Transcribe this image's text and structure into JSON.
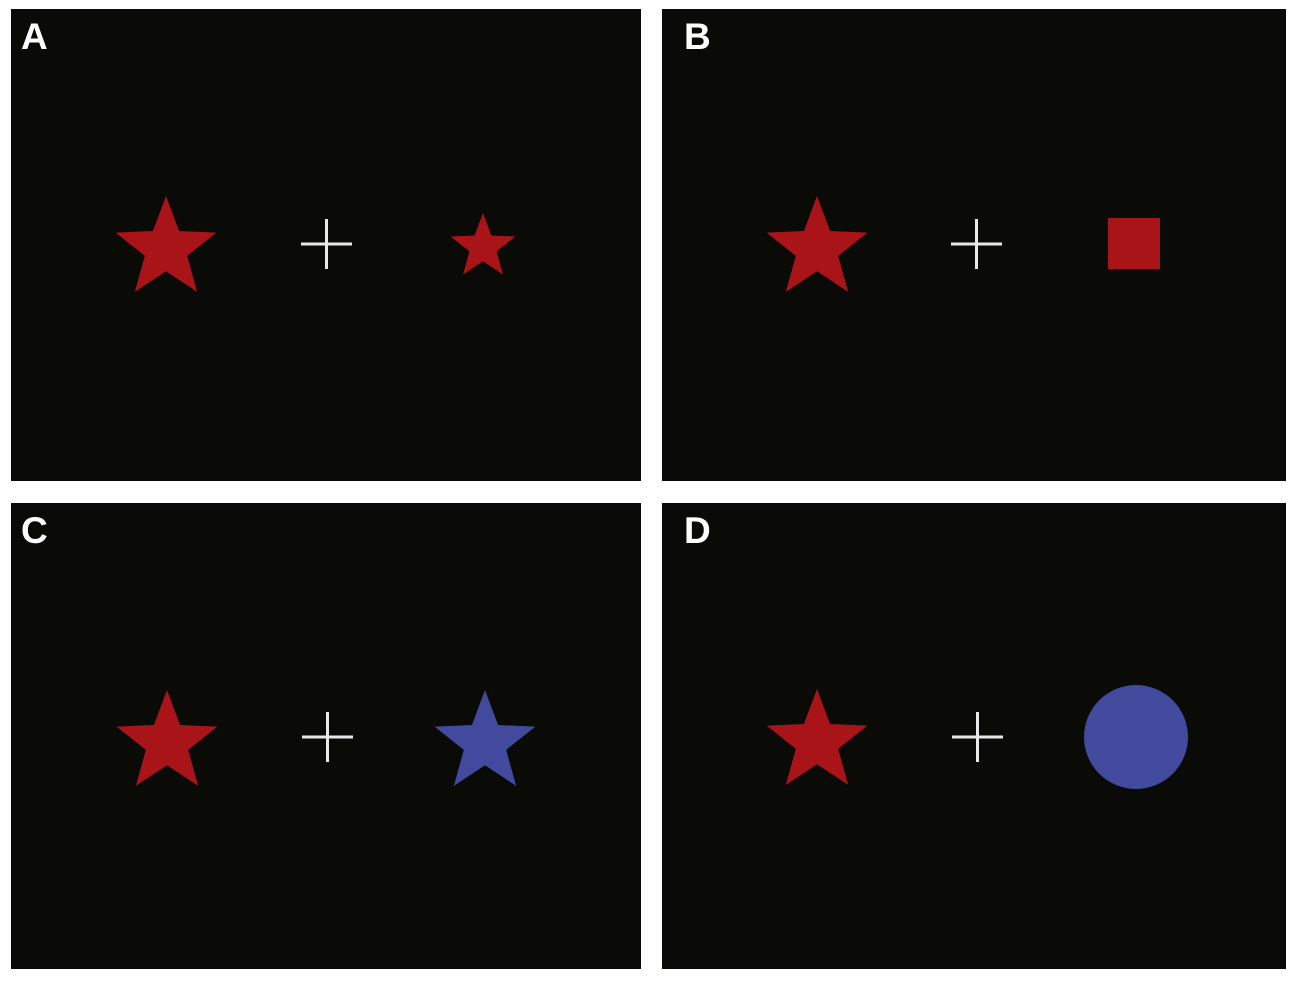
{
  "colors": {
    "background": "#0a0a06",
    "red": "#a91418",
    "blue": "#414a9c",
    "fixation": "#e8e8e8"
  },
  "panels": [
    {
      "label": "A",
      "left_stimulus": "star",
      "left_color": "red",
      "right_stimulus": "star",
      "right_color": "red",
      "right_size": "small"
    },
    {
      "label": "B",
      "left_stimulus": "star",
      "left_color": "red",
      "right_stimulus": "square",
      "right_color": "red"
    },
    {
      "label": "C",
      "left_stimulus": "star",
      "left_color": "red",
      "right_stimulus": "star",
      "right_color": "blue"
    },
    {
      "label": "D",
      "left_stimulus": "star",
      "left_color": "red",
      "right_stimulus": "circle",
      "right_color": "blue"
    }
  ]
}
